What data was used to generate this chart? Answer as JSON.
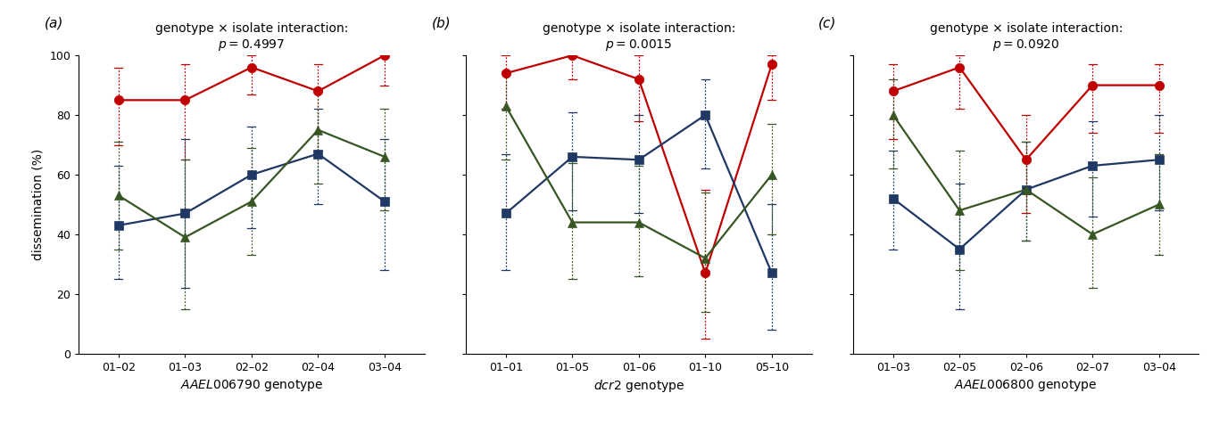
{
  "panels": [
    {
      "label": "(a)",
      "p_value": "0.4997",
      "xlabel_gene": "AAEL006790",
      "xticks": [
        "01–02",
        "01–03",
        "02–02",
        "02–04",
        "03–04"
      ],
      "red": [
        85,
        85,
        96,
        88,
        100
      ],
      "red_lo": [
        70,
        65,
        87,
        68,
        90
      ],
      "red_hi": [
        96,
        97,
        100,
        97,
        100
      ],
      "blue": [
        43,
        47,
        60,
        67,
        51
      ],
      "blue_lo": [
        25,
        22,
        42,
        50,
        28
      ],
      "blue_hi": [
        63,
        72,
        76,
        82,
        72
      ],
      "green": [
        53,
        39,
        51,
        75,
        66
      ],
      "green_lo": [
        35,
        15,
        33,
        57,
        48
      ],
      "green_hi": [
        71,
        65,
        69,
        88,
        82
      ]
    },
    {
      "label": "(b)",
      "p_value": "0.0015",
      "xlabel_gene": "dcr2",
      "xticks": [
        "01–01",
        "01–05",
        "01–06",
        "01–10",
        "05–10"
      ],
      "red": [
        94,
        100,
        92,
        27,
        97
      ],
      "red_lo": [
        82,
        92,
        78,
        5,
        85
      ],
      "red_hi": [
        100,
        100,
        100,
        55,
        100
      ],
      "blue": [
        47,
        66,
        65,
        80,
        27
      ],
      "blue_lo": [
        28,
        48,
        47,
        62,
        8
      ],
      "blue_hi": [
        67,
        81,
        80,
        92,
        50
      ],
      "green": [
        83,
        44,
        44,
        32,
        60
      ],
      "green_lo": [
        65,
        25,
        26,
        14,
        40
      ],
      "green_hi": [
        94,
        64,
        63,
        54,
        77
      ]
    },
    {
      "label": "(c)",
      "p_value": "0.0920",
      "xlabel_gene": "AAEL006800",
      "xticks": [
        "01–03",
        "02–05",
        "02–06",
        "02–07",
        "03–04"
      ],
      "red": [
        88,
        96,
        65,
        90,
        90
      ],
      "red_lo": [
        72,
        82,
        47,
        74,
        74
      ],
      "red_hi": [
        97,
        100,
        80,
        97,
        97
      ],
      "blue": [
        52,
        35,
        55,
        63,
        65
      ],
      "blue_lo": [
        35,
        15,
        38,
        46,
        48
      ],
      "blue_hi": [
        68,
        57,
        71,
        78,
        80
      ],
      "green": [
        80,
        48,
        55,
        40,
        50
      ],
      "green_lo": [
        62,
        28,
        38,
        22,
        33
      ],
      "green_hi": [
        92,
        68,
        71,
        59,
        67
      ]
    }
  ],
  "red_color": "#c00000",
  "blue_color": "#1f3864",
  "green_color": "#375623",
  "ylim": [
    0,
    100
  ],
  "yticks": [
    0,
    20,
    40,
    60,
    80,
    100
  ]
}
